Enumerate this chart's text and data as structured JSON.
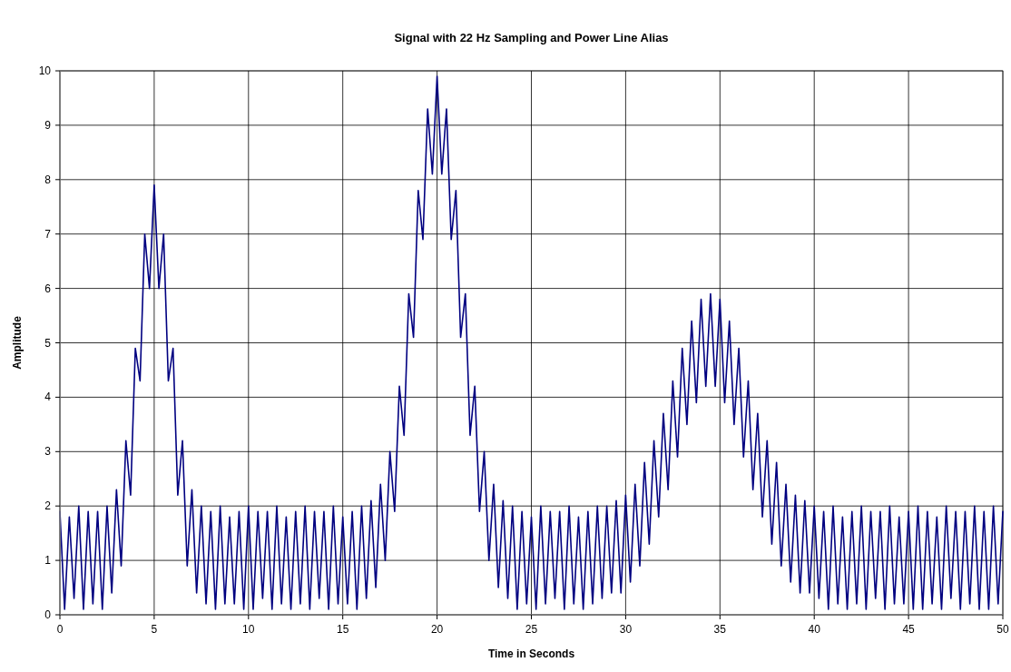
{
  "chart_data": {
    "type": "line",
    "title": "Signal with 22 Hz Sampling and Power Line Alias",
    "xlabel": "Time in Seconds",
    "ylabel": "Amplitude",
    "xlim": [
      0,
      50
    ],
    "xticks": [
      0,
      5,
      10,
      15,
      20,
      25,
      30,
      35,
      40,
      45,
      50
    ],
    "ylim": [
      0,
      10
    ],
    "yticks": [
      0,
      1,
      2,
      3,
      4,
      5,
      6,
      7,
      8,
      9,
      10
    ],
    "grid": true,
    "marker": "none",
    "line_style": "solid",
    "x": [
      0,
      0.25,
      0.5,
      0.75,
      1,
      1.25,
      1.5,
      1.75,
      2,
      2.25,
      2.5,
      2.75,
      3,
      3.25,
      3.5,
      3.75,
      4,
      4.25,
      4.5,
      4.75,
      5,
      5.25,
      5.5,
      5.75,
      6,
      6.25,
      6.5,
      6.75,
      7,
      7.25,
      7.5,
      7.75,
      8,
      8.25,
      8.5,
      8.75,
      9,
      9.25,
      9.5,
      9.75,
      10,
      10.25,
      10.5,
      10.75,
      11,
      11.25,
      11.5,
      11.75,
      12,
      12.25,
      12.5,
      12.75,
      13,
      13.25,
      13.5,
      13.75,
      14,
      14.25,
      14.5,
      14.75,
      15,
      15.25,
      15.5,
      15.75,
      16,
      16.25,
      16.5,
      16.75,
      17,
      17.25,
      17.5,
      17.75,
      18,
      18.25,
      18.5,
      18.75,
      19,
      19.25,
      19.5,
      19.75,
      20,
      20.25,
      20.5,
      20.75,
      21,
      21.25,
      21.5,
      21.75,
      22,
      22.25,
      22.5,
      22.75,
      23,
      23.25,
      23.5,
      23.75,
      24,
      24.25,
      24.5,
      24.75,
      25,
      25.25,
      25.5,
      25.75,
      26,
      26.25,
      26.5,
      26.75,
      27,
      27.25,
      27.5,
      27.75,
      28,
      28.25,
      28.5,
      28.75,
      29,
      29.25,
      29.5,
      29.75,
      30,
      30.25,
      30.5,
      30.75,
      31,
      31.25,
      31.5,
      31.75,
      32,
      32.25,
      32.5,
      32.75,
      33,
      33.25,
      33.5,
      33.75,
      34,
      34.25,
      34.5,
      34.75,
      35,
      35.25,
      35.5,
      35.75,
      36,
      36.25,
      36.5,
      36.75,
      37,
      37.25,
      37.5,
      37.75,
      38,
      38.25,
      38.5,
      38.75,
      39,
      39.25,
      39.5,
      39.75,
      40,
      40.25,
      40.5,
      40.75,
      41,
      41.25,
      41.5,
      41.75,
      42,
      42.25,
      42.5,
      42.75,
      43,
      43.25,
      43.5,
      43.75,
      44,
      44.25,
      44.5,
      44.75,
      45,
      45.25,
      45.5,
      45.75,
      46,
      46.25,
      46.5,
      46.75,
      47,
      47.25,
      47.5,
      47.75,
      48,
      48.25,
      48.5,
      48.75,
      49,
      49.25,
      49.5,
      49.75,
      50
    ],
    "series": [
      {
        "color": "#000080",
        "values": [
          1.9,
          0.1,
          1.8,
          0.3,
          2.0,
          0.1,
          1.9,
          0.2,
          1.9,
          0.1,
          2.0,
          0.4,
          2.3,
          0.9,
          3.2,
          2.2,
          4.9,
          4.3,
          7.0,
          6.0,
          7.9,
          6.0,
          7.0,
          4.3,
          4.9,
          2.2,
          3.2,
          0.9,
          2.3,
          0.4,
          2.0,
          0.2,
          1.9,
          0.1,
          2.0,
          0.2,
          1.8,
          0.2,
          1.9,
          0.1,
          2.0,
          0.1,
          1.9,
          0.3,
          1.9,
          0.1,
          2.0,
          0.2,
          1.8,
          0.1,
          1.9,
          0.2,
          2.0,
          0.1,
          1.9,
          0.3,
          1.9,
          0.1,
          2.0,
          0.2,
          1.8,
          0.2,
          1.9,
          0.1,
          2.0,
          0.3,
          2.1,
          0.5,
          2.4,
          1.0,
          3.0,
          1.9,
          4.2,
          3.3,
          5.9,
          5.1,
          7.8,
          6.9,
          9.3,
          8.1,
          9.9,
          8.1,
          9.3,
          6.9,
          7.8,
          5.1,
          5.9,
          3.3,
          4.2,
          1.9,
          3.0,
          1.0,
          2.4,
          0.5,
          2.1,
          0.3,
          2.0,
          0.1,
          1.9,
          0.2,
          1.8,
          0.1,
          2.0,
          0.2,
          1.9,
          0.3,
          1.9,
          0.1,
          2.0,
          0.2,
          1.8,
          0.1,
          1.9,
          0.2,
          2.0,
          0.3,
          2.0,
          0.4,
          2.1,
          0.4,
          2.2,
          0.6,
          2.4,
          0.9,
          2.8,
          1.3,
          3.2,
          1.8,
          3.7,
          2.3,
          4.3,
          2.9,
          4.9,
          3.5,
          5.4,
          3.9,
          5.8,
          4.2,
          5.9,
          4.2,
          5.8,
          3.9,
          5.4,
          3.5,
          4.9,
          2.9,
          4.3,
          2.3,
          3.7,
          1.8,
          3.2,
          1.3,
          2.8,
          0.9,
          2.4,
          0.6,
          2.2,
          0.4,
          2.1,
          0.4,
          2.0,
          0.3,
          1.9,
          0.1,
          2.0,
          0.2,
          1.8,
          0.1,
          1.9,
          0.2,
          2.0,
          0.1,
          1.9,
          0.3,
          1.9,
          0.1,
          2.0,
          0.2,
          1.8,
          0.2,
          1.9,
          0.1,
          2.0,
          0.1,
          1.9,
          0.2,
          1.8,
          0.1,
          2.0,
          0.3,
          1.9,
          0.1,
          1.9,
          0.2,
          2.0,
          0.1,
          1.9,
          0.1,
          2.0,
          0.2,
          1.9
        ]
      }
    ]
  }
}
